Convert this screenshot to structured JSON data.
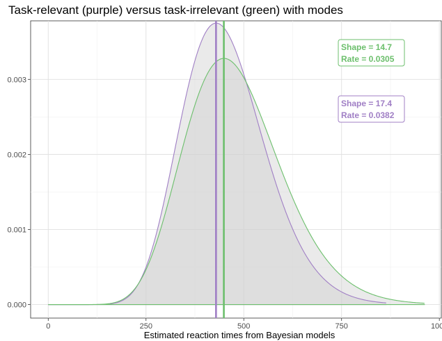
{
  "chart_data": {
    "type": "area",
    "title": "Task-relevant (purple) versus task-irrelevant (green) with modes",
    "xlabel": "Estimated reaction times from Bayesian models",
    "ylabel": "",
    "xlim": [
      -45,
      1005
    ],
    "ylim": [
      -0.00018,
      0.00378
    ],
    "x_ticks": [
      0,
      250,
      500,
      750,
      1000
    ],
    "x_tick_labels": [
      "0",
      "250",
      "500",
      "750",
      "1000"
    ],
    "y_ticks": [
      0,
      0.001,
      0.002,
      0.003
    ],
    "y_tick_labels": [
      "0.000",
      "0.001",
      "0.002",
      "0.003"
    ],
    "grid": true,
    "series": [
      {
        "label_lines": [
          "Shape = 17.4",
          "Rate = 0.0382"
        ],
        "distribution": "gamma",
        "shape": 17.4,
        "rate": 0.0382,
        "x_range": [
          0,
          865
        ],
        "mode": 429,
        "peak": 0.00375,
        "color": "#a07fc5"
      },
      {
        "label_lines": [
          "Shape = 14.7",
          "Rate = 0.0305"
        ],
        "distribution": "gamma",
        "shape": 14.7,
        "rate": 0.0305,
        "x_range": [
          0,
          963
        ],
        "mode": 449,
        "peak": 0.00328,
        "color": "#6cbf6c"
      }
    ],
    "fill_color": "#d0d0d0",
    "panel_background": "#ebebeb"
  }
}
